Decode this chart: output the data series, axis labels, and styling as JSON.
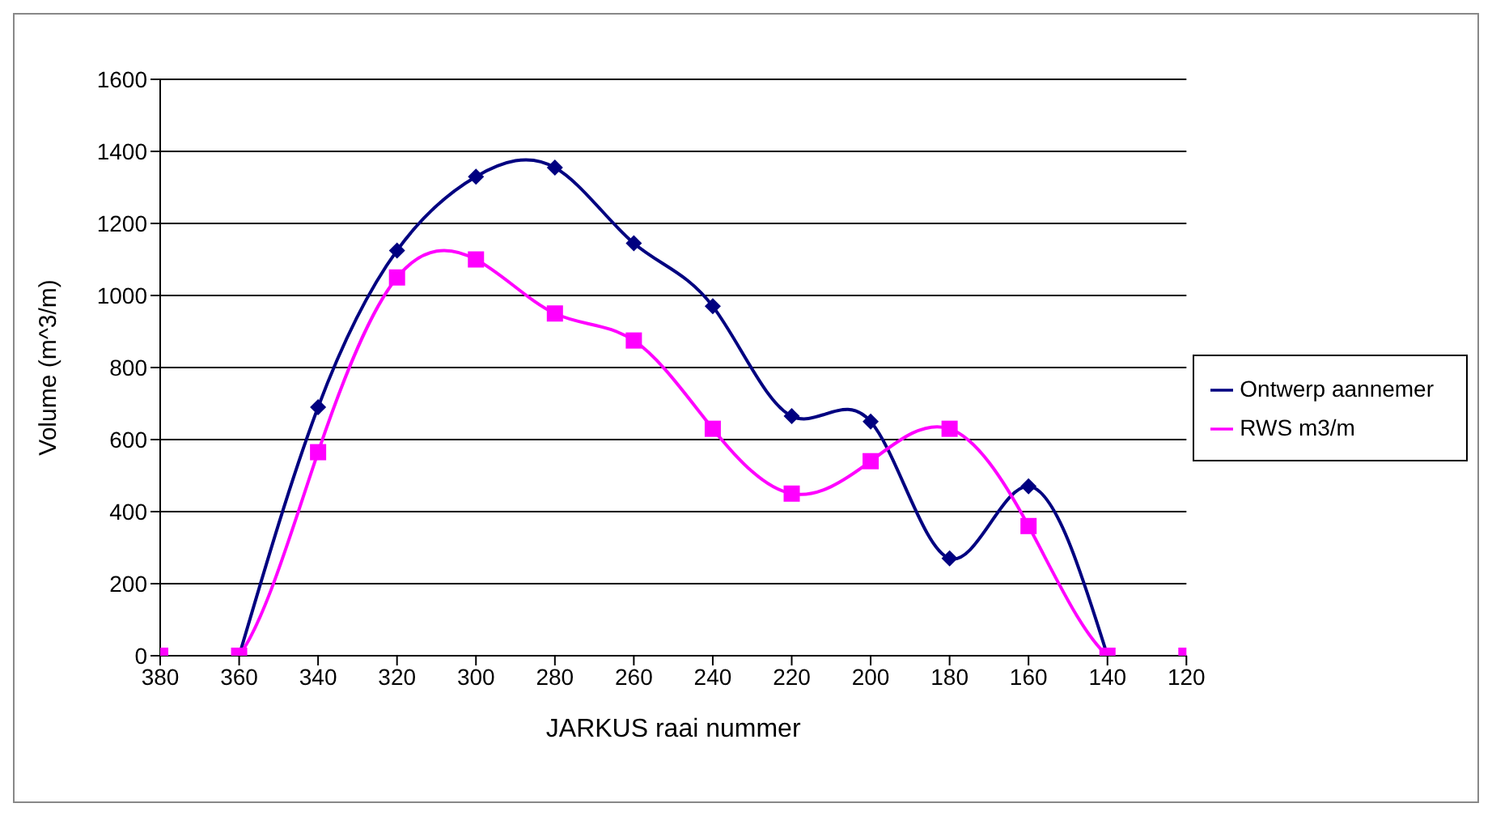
{
  "chart_data": {
    "type": "line",
    "xlabel": "JARKUS raai nummer",
    "ylabel": "Volume (m^3/m)",
    "x": [
      380,
      360,
      340,
      320,
      300,
      280,
      260,
      240,
      220,
      200,
      180,
      160,
      140,
      120
    ],
    "series": [
      {
        "name": "Ontwerp aannemer",
        "color": "#000080",
        "marker": "diamond",
        "values": [
          null,
          0,
          690,
          1125,
          1330,
          1355,
          1145,
          970,
          665,
          650,
          270,
          470,
          0,
          null
        ]
      },
      {
        "name": "RWS m3/m",
        "color": "#ff00ff",
        "marker": "square",
        "values": [
          0,
          0,
          565,
          1050,
          1100,
          950,
          875,
          630,
          450,
          540,
          630,
          360,
          0,
          0
        ]
      }
    ],
    "xlim": [
      380,
      120
    ],
    "xticks": [
      380,
      360,
      340,
      320,
      300,
      280,
      260,
      240,
      220,
      200,
      180,
      160,
      140,
      120
    ],
    "ylim": [
      0,
      1600
    ],
    "yticks": [
      0,
      200,
      400,
      600,
      800,
      1000,
      1200,
      1400,
      1600
    ],
    "grid": "y",
    "legend": "right"
  }
}
